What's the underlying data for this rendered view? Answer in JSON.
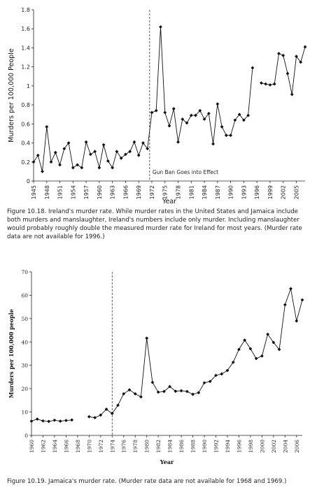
{
  "captions": {
    "fig1": "Figure 10.18. Ireland's murder rate. While murder rates in the United States and Jamaica include both murders and manslaughter, Ireland's numbers include only murder. Including manslaughter would probably roughly double the measured murder rate for Ireland for most years. (Murder rate data are not available for 1996.)",
    "fig2": "Figure 10.19. Jamaica's murder rate. (Murder rate data are not available for 1968 and 1969.)"
  },
  "chart_data": [
    {
      "type": "line",
      "ylabel": "Murders per 100,000 People",
      "xlabel": "Year",
      "xlim": [
        1945,
        2007
      ],
      "ylim": [
        0,
        1.8
      ],
      "yticks": [
        "0",
        "0.2",
        "0.4",
        "0.6",
        "0.8",
        "1",
        "1.2",
        "1.4",
        "1.6",
        "1.8"
      ],
      "xticks": [
        "1945",
        "1948",
        "1951",
        "1954",
        "1957",
        "1960",
        "1963",
        "1966",
        "1969",
        "1972",
        "1975",
        "1978",
        "1981",
        "1984",
        "1987",
        "1990",
        "1993",
        "1996",
        "1999",
        "2002",
        "2005"
      ],
      "vline_year": 1971.5,
      "annotation": "Gun Ban Goes into Effect",
      "grid": false,
      "segments": [
        {
          "x": [
            1945,
            1946,
            1947,
            1948,
            1949,
            1950,
            1951,
            1952,
            1953,
            1954,
            1955,
            1956,
            1957,
            1958,
            1959,
            1960,
            1961,
            1962,
            1963,
            1964,
            1965,
            1966,
            1967,
            1968,
            1969,
            1970,
            1971,
            1972,
            1973,
            1974,
            1975,
            1976,
            1977,
            1978,
            1979,
            1980,
            1981,
            1982,
            1983,
            1984,
            1985,
            1986,
            1987,
            1988,
            1989,
            1990,
            1991,
            1992,
            1993,
            1994,
            1995
          ],
          "y": [
            0.2,
            0.27,
            0.1,
            0.57,
            0.2,
            0.3,
            0.17,
            0.34,
            0.4,
            0.14,
            0.17,
            0.14,
            0.41,
            0.28,
            0.31,
            0.14,
            0.38,
            0.21,
            0.14,
            0.31,
            0.24,
            0.28,
            0.31,
            0.41,
            0.27,
            0.4,
            0.34,
            0.72,
            0.74,
            1.62,
            0.72,
            0.58,
            0.76,
            0.41,
            0.65,
            0.61,
            0.69,
            0.69,
            0.74,
            0.65,
            0.71,
            0.39,
            0.81,
            0.57,
            0.48,
            0.48,
            0.64,
            0.7,
            0.64,
            0.69,
            1.19
          ]
        },
        {
          "x": [
            1997,
            1998,
            1999,
            2000,
            2001,
            2002,
            2003,
            2004,
            2005,
            2006,
            2007
          ],
          "y": [
            1.03,
            1.02,
            1.01,
            1.02,
            1.34,
            1.32,
            1.13,
            0.91,
            1.31,
            1.25,
            1.41
          ]
        }
      ]
    },
    {
      "type": "line",
      "ylabel": "Murders per 100,000 people",
      "xlabel": "Year",
      "xlim": [
        1960,
        2007
      ],
      "ylim": [
        0,
        70
      ],
      "yticks": [
        "0",
        "10",
        "20",
        "30",
        "40",
        "50",
        "60",
        "70"
      ],
      "xticks": [
        "1960",
        "1962",
        "1964",
        "1966",
        "1968",
        "1970",
        "1972",
        "1974",
        "1976",
        "1978",
        "1980",
        "1982",
        "1984",
        "1986",
        "1988",
        "1990",
        "1992",
        "1994",
        "1996",
        "1998",
        "2000",
        "2002",
        "2004",
        "2006"
      ],
      "vline_year": 1974,
      "grid": false,
      "segments": [
        {
          "x": [
            1960,
            1961,
            1962,
            1963,
            1964,
            1965,
            1966,
            1967
          ],
          "y": [
            6.1,
            7.0,
            6.2,
            6.0,
            6.5,
            6.1,
            6.4,
            6.6
          ]
        },
        {
          "x": [
            1970,
            1971,
            1972,
            1973,
            1974,
            1975,
            1976,
            1977,
            1978,
            1979,
            1980,
            1981,
            1982,
            1983,
            1984,
            1985,
            1986,
            1987,
            1988,
            1989,
            1990,
            1991,
            1992,
            1993,
            1994,
            1995,
            1996,
            1997,
            1998,
            1999,
            2000,
            2001,
            2002,
            2003,
            2004,
            2005,
            2006,
            2007
          ],
          "y": [
            8.0,
            7.6,
            8.7,
            11.2,
            9.4,
            12.9,
            17.8,
            19.5,
            17.8,
            16.5,
            41.6,
            22.7,
            18.5,
            18.8,
            20.9,
            18.9,
            19.1,
            18.8,
            17.6,
            18.3,
            22.5,
            23.1,
            25.7,
            26.3,
            27.8,
            31.3,
            36.8,
            40.8,
            37.1,
            32.9,
            34.0,
            43.3,
            39.8,
            36.8,
            55.9,
            62.8,
            49.0,
            58.0
          ]
        }
      ]
    }
  ]
}
